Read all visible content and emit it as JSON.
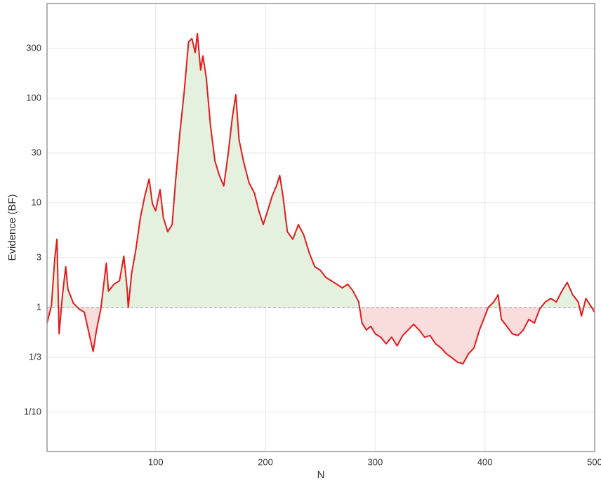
{
  "chart_data": {
    "type": "line",
    "x_label": "N",
    "y_label": "Evidence (BF)",
    "x": [
      1,
      5,
      8,
      10,
      12,
      15,
      18,
      20,
      25,
      30,
      35,
      40,
      43,
      46,
      50,
      55,
      57,
      62,
      67,
      71,
      74,
      75,
      78,
      82,
      86,
      90,
      94,
      97,
      100,
      104,
      107,
      111,
      115,
      118,
      122,
      126,
      130,
      133,
      136,
      138,
      141,
      143,
      146,
      150,
      154,
      158,
      162,
      166,
      170,
      173,
      176,
      180,
      185,
      190,
      194,
      198,
      202,
      206,
      210,
      213,
      216,
      220,
      225,
      230,
      235,
      240,
      245,
      250,
      255,
      260,
      265,
      270,
      275,
      280,
      285,
      288,
      292,
      296,
      300,
      305,
      310,
      315,
      320,
      325,
      330,
      335,
      340,
      345,
      350,
      355,
      360,
      365,
      370,
      375,
      380,
      385,
      390,
      395,
      400,
      403,
      408,
      412,
      415,
      420,
      425,
      430,
      435,
      440,
      445,
      450,
      455,
      460,
      465,
      470,
      475,
      480,
      485,
      488,
      492,
      496,
      500
    ],
    "values": [
      0.71,
      1.05,
      2.9,
      4.5,
      0.56,
      1.3,
      2.45,
      1.5,
      1.1,
      0.97,
      0.9,
      0.52,
      0.38,
      0.6,
      0.97,
      2.65,
      1.43,
      1.67,
      1.8,
      3.1,
      1.5,
      1.0,
      2.1,
      3.6,
      7.2,
      11.5,
      16.9,
      9.8,
      8.4,
      13.4,
      7.2,
      5.3,
      6.2,
      15.6,
      46,
      116,
      345,
      373,
      273,
      415,
      186,
      254,
      159,
      54,
      25,
      18.3,
      14.5,
      29,
      68,
      108,
      40,
      25,
      15.6,
      12.4,
      8.4,
      6.2,
      8.4,
      11.5,
      14.5,
      18.3,
      11.5,
      5.3,
      4.5,
      6.2,
      4.9,
      3.3,
      2.45,
      2.27,
      1.94,
      1.8,
      1.67,
      1.54,
      1.67,
      1.43,
      1.13,
      0.71,
      0.61,
      0.66,
      0.56,
      0.52,
      0.45,
      0.52,
      0.43,
      0.54,
      0.61,
      0.69,
      0.61,
      0.52,
      0.54,
      0.45,
      0.41,
      0.36,
      0.33,
      0.3,
      0.29,
      0.36,
      0.41,
      0.61,
      0.83,
      1.0,
      1.13,
      1.32,
      0.77,
      0.66,
      0.56,
      0.54,
      0.61,
      0.77,
      0.71,
      0.97,
      1.13,
      1.22,
      1.13,
      1.43,
      1.74,
      1.32,
      1.13,
      0.83,
      1.22,
      1.05,
      0.9
    ],
    "color": "#e31a1c",
    "fill_above_color": "#e4f1de",
    "fill_below_color": "#f9dcdc",
    "reference_line": 1,
    "xlim": [
      1,
      500
    ],
    "xticks": [
      100,
      200,
      300,
      400,
      500
    ],
    "ylim": [
      0.042,
      805
    ],
    "yticks": [
      {
        "value": 0.1,
        "label": "1/10"
      },
      {
        "value": 0.3333,
        "label": "1/3"
      },
      1,
      3,
      10,
      30,
      100,
      300
    ],
    "log_scale_y": true,
    "grid": true
  }
}
